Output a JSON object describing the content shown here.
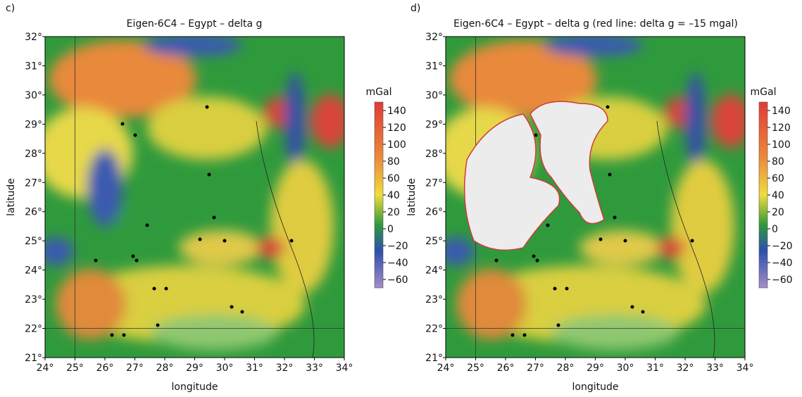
{
  "panels": [
    {
      "label": "c)",
      "title": "Eigen-6C4 – Egypt – delta g",
      "x_label": "longitude",
      "y_label": "latitude",
      "xlim": [
        24,
        34
      ],
      "xticks": [
        {
          "value": 24,
          "label": "24°"
        },
        {
          "value": 25,
          "label": "25°"
        },
        {
          "value": 26,
          "label": "26°"
        },
        {
          "value": 27,
          "label": "27°"
        },
        {
          "value": 28,
          "label": "28°"
        },
        {
          "value": 29,
          "label": "29°"
        },
        {
          "value": 30,
          "label": "30°"
        },
        {
          "value": 31,
          "label": "31°"
        },
        {
          "value": 32,
          "label": "32°"
        },
        {
          "value": 33,
          "label": "33°"
        },
        {
          "value": 34,
          "label": "34°"
        }
      ],
      "ylim": [
        21,
        32
      ],
      "yticks": [
        {
          "value": 21,
          "label": "21°"
        },
        {
          "value": 22,
          "label": "22°"
        },
        {
          "value": 23,
          "label": "23°"
        },
        {
          "value": 24,
          "label": "24°"
        },
        {
          "value": 25,
          "label": "25°"
        },
        {
          "value": 26,
          "label": "26°"
        },
        {
          "value": 27,
          "label": "27°"
        },
        {
          "value": 28,
          "label": "28°"
        },
        {
          "value": 29,
          "label": "29°"
        },
        {
          "value": 30,
          "label": "30°"
        },
        {
          "value": 31,
          "label": "31°"
        },
        {
          "value": 32,
          "label": "32°"
        }
      ],
      "colorbar": {
        "unit": "mGal",
        "clim": [
          -70,
          150
        ],
        "ticks": [
          140,
          120,
          100,
          80,
          60,
          40,
          20,
          0,
          {
            "value": -20,
            "label": "−20"
          },
          {
            "value": -40,
            "label": "−40"
          },
          {
            "value": -60,
            "label": "−60"
          }
        ]
      }
    },
    {
      "label": "d)",
      "title": "Eigen-6C4 – Egypt – delta g (red line: delta g = –15 mgal)",
      "x_label": "longitude",
      "y_label": "latitude",
      "xlim": [
        24,
        34
      ],
      "xticks": [
        {
          "value": 24,
          "label": "24°"
        },
        {
          "value": 25,
          "label": "25°"
        },
        {
          "value": 26,
          "label": "26°"
        },
        {
          "value": 27,
          "label": "27°"
        },
        {
          "value": 28,
          "label": "28°"
        },
        {
          "value": 29,
          "label": "29°"
        },
        {
          "value": 30,
          "label": "30°"
        },
        {
          "value": 31,
          "label": "31°"
        },
        {
          "value": 32,
          "label": "32°"
        },
        {
          "value": 33,
          "label": "33°"
        },
        {
          "value": 34,
          "label": "34°"
        }
      ],
      "ylim": [
        21,
        32
      ],
      "yticks": [
        {
          "value": 21,
          "label": "21°"
        },
        {
          "value": 22,
          "label": "22°"
        },
        {
          "value": 23,
          "label": "23°"
        },
        {
          "value": 24,
          "label": "24°"
        },
        {
          "value": 25,
          "label": "25°"
        },
        {
          "value": 26,
          "label": "26°"
        },
        {
          "value": 27,
          "label": "27°"
        },
        {
          "value": 28,
          "label": "28°"
        },
        {
          "value": 29,
          "label": "29°"
        },
        {
          "value": 30,
          "label": "30°"
        },
        {
          "value": 31,
          "label": "31°"
        },
        {
          "value": 32,
          "label": "32°"
        }
      ],
      "colorbar": {
        "unit": "mGal",
        "clim": [
          -70,
          150
        ],
        "ticks": [
          140,
          120,
          100,
          80,
          60,
          40,
          20,
          0,
          {
            "value": -20,
            "label": "−20"
          },
          {
            "value": -40,
            "label": "−40"
          },
          {
            "value": -60,
            "label": "−60"
          }
        ]
      }
    }
  ]
}
